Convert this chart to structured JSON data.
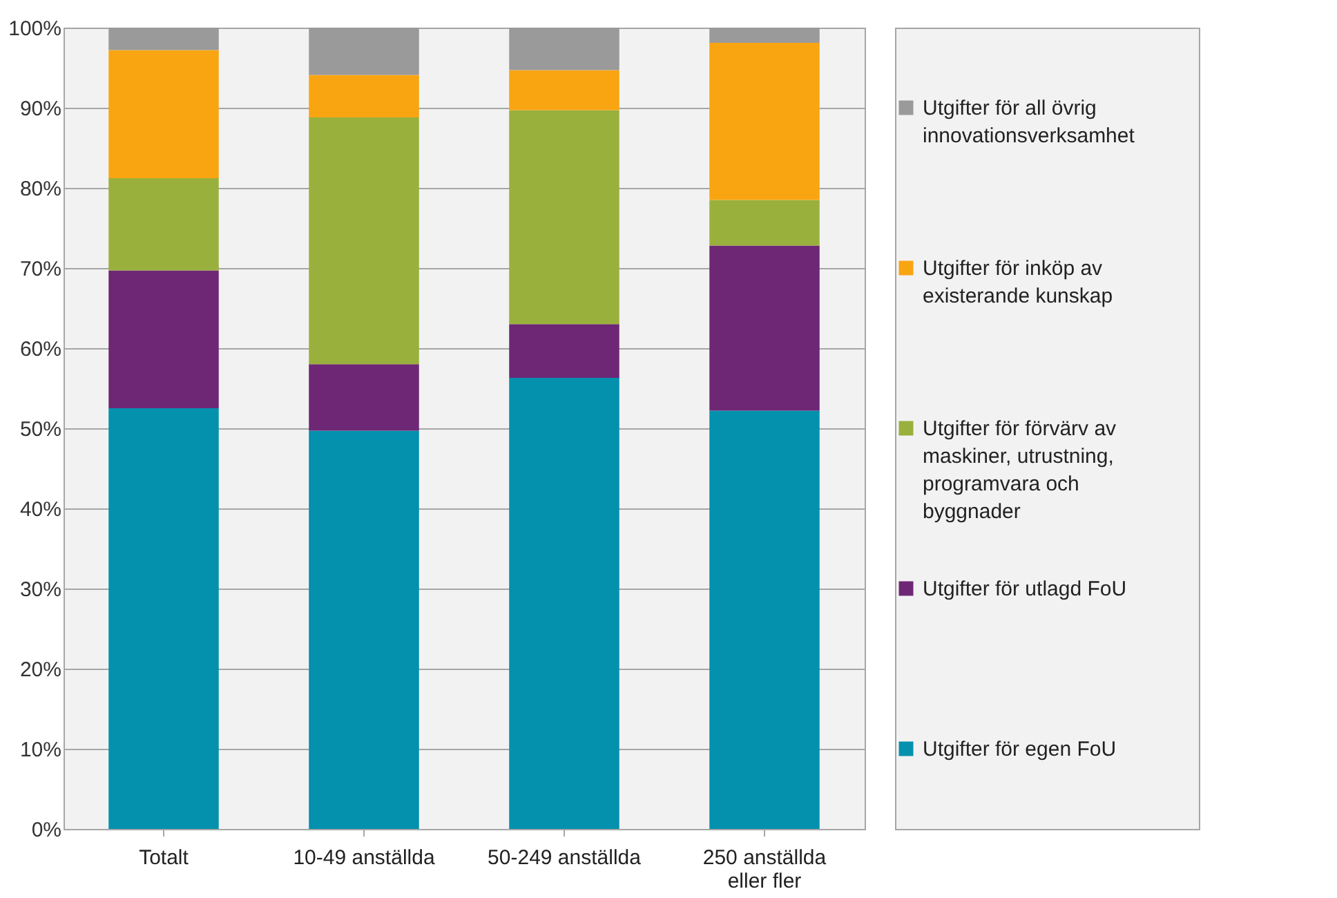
{
  "chart_data": {
    "type": "bar",
    "stacked": true,
    "categories": [
      "Totalt",
      "10-49 anställda",
      "50-249 anställda",
      "250 anställda eller fler"
    ],
    "series": [
      {
        "name": "Utgifter för egen FoU",
        "color": "#0391ae",
        "values": [
          52.5,
          49.7,
          56.3,
          52.2
        ]
      },
      {
        "name": "Utgifter för utlagd FoU",
        "color": "#6e2775",
        "values": [
          17.2,
          8.3,
          6.7,
          20.6
        ]
      },
      {
        "name": "Utgifter för förvärv av maskiner, utrustning, programvara och byggnader",
        "color": "#9ab03c",
        "values": [
          11.5,
          30.8,
          26.7,
          5.7
        ]
      },
      {
        "name": "Utgifter för inköp av existerande kunskap",
        "color": "#f9a512",
        "values": [
          16.0,
          5.3,
          5.0,
          19.6
        ]
      },
      {
        "name": "Utgifter för all övrig innovationsverksamhet",
        "color": "#9a9a9a",
        "values": [
          2.8,
          5.9,
          5.3,
          1.9
        ]
      }
    ],
    "ylim": [
      0,
      100
    ],
    "yticks": [
      {
        "value": 0,
        "label": "0%"
      },
      {
        "value": 10,
        "label": "10%"
      },
      {
        "value": 20,
        "label": "20%"
      },
      {
        "value": 30,
        "label": "30%"
      },
      {
        "value": 40,
        "label": "40%"
      },
      {
        "value": 50,
        "label": "50%"
      },
      {
        "value": 60,
        "label": "60%"
      },
      {
        "value": 70,
        "label": "70%"
      },
      {
        "value": 80,
        "label": "80%"
      },
      {
        "value": 90,
        "label": "90%"
      },
      {
        "value": 100,
        "label": "100%"
      }
    ],
    "grid": "y",
    "legend": "right"
  }
}
